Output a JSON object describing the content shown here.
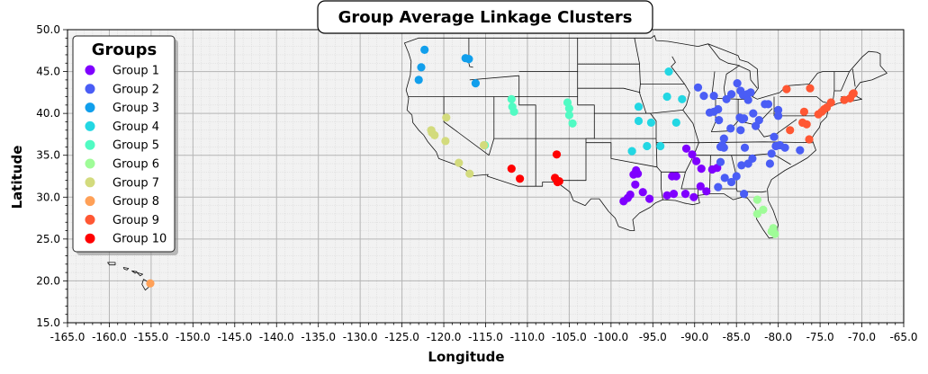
{
  "chart_data": {
    "type": "scatter",
    "title": "Group Average Linkage Clusters",
    "xlabel": "Longitude",
    "ylabel": "Latitude",
    "xlim": [
      -165,
      -65
    ],
    "ylim": [
      15,
      50
    ],
    "x_ticks": [
      -165,
      -160,
      -155,
      -150,
      -145,
      -140,
      -135,
      -130,
      -125,
      -120,
      -115,
      -110,
      -105,
      -100,
      -95,
      -90,
      -85,
      -80,
      -75,
      -70,
      -65
    ],
    "x_tick_labels": [
      "-165.0",
      "-160.0",
      "-155.0",
      "-150.0",
      "-145.0",
      "-140.0",
      "-135.0",
      "-130.0",
      "-125.0",
      "-120.0",
      "-115.0",
      "-110.0",
      "-105.0",
      "-100.0",
      "-95.0",
      "-90.0",
      "-85.0",
      "-80.0",
      "-75.0",
      "-70.0",
      "-65.0"
    ],
    "y_ticks": [
      15,
      20,
      25,
      30,
      35,
      40,
      45,
      50
    ],
    "y_tick_labels": [
      "15.0",
      "20.0",
      "25.0",
      "30.0",
      "35.0",
      "40.0",
      "45.0",
      "50.0"
    ],
    "grid": true,
    "legend_title": "Groups",
    "legend_position": "top-left",
    "series": [
      {
        "name": "Group 1",
        "color": "#7f00ff",
        "points": [
          [
            -97.0,
            33.2
          ],
          [
            -96.8,
            32.8
          ],
          [
            -97.3,
            32.7
          ],
          [
            -97.1,
            31.5
          ],
          [
            -96.2,
            30.6
          ],
          [
            -97.7,
            30.3
          ],
          [
            -98.0,
            29.9
          ],
          [
            -98.5,
            29.5
          ],
          [
            -95.4,
            29.8
          ],
          [
            -92.7,
            32.5
          ],
          [
            -92.2,
            32.5
          ],
          [
            -93.3,
            30.2
          ],
          [
            -92.5,
            30.4
          ],
          [
            -91.1,
            30.4
          ],
          [
            -90.1,
            30.0
          ],
          [
            -89.3,
            31.3
          ],
          [
            -88.6,
            30.7
          ],
          [
            -91.0,
            35.8
          ],
          [
            -90.3,
            35.1
          ],
          [
            -89.8,
            34.3
          ],
          [
            -89.2,
            33.4
          ],
          [
            -87.9,
            33.3
          ],
          [
            -87.3,
            33.5
          ]
        ]
      },
      {
        "name": "Group 2",
        "color": "#4a5df5",
        "points": [
          [
            -89.6,
            43.1
          ],
          [
            -88.9,
            42.1
          ],
          [
            -87.7,
            42.1
          ],
          [
            -88.2,
            40.1
          ],
          [
            -87.7,
            40.2
          ],
          [
            -87.2,
            40.5
          ],
          [
            -87.1,
            39.2
          ],
          [
            -86.7,
            36.2
          ],
          [
            -86.5,
            35.9
          ],
          [
            -86.5,
            37.0
          ],
          [
            -85.7,
            38.2
          ],
          [
            -86.2,
            41.7
          ],
          [
            -85.6,
            42.3
          ],
          [
            -84.9,
            43.6
          ],
          [
            -84.5,
            42.7
          ],
          [
            -84.2,
            42.2
          ],
          [
            -83.7,
            42.3
          ],
          [
            -83.6,
            41.6
          ],
          [
            -83.0,
            40.0
          ],
          [
            -84.6,
            39.5
          ],
          [
            -84.3,
            39.3
          ],
          [
            -84.5,
            38.0
          ],
          [
            -84.0,
            35.9
          ],
          [
            -84.4,
            33.8
          ],
          [
            -83.6,
            34.0
          ],
          [
            -83.1,
            34.6
          ],
          [
            -82.7,
            38.5
          ],
          [
            -82.3,
            39.2
          ],
          [
            -81.6,
            41.1
          ],
          [
            -81.2,
            41.1
          ],
          [
            -80.5,
            37.2
          ],
          [
            -80.3,
            36.1
          ],
          [
            -79.8,
            36.2
          ],
          [
            -79.2,
            35.9
          ],
          [
            -80.8,
            35.2
          ],
          [
            -81.0,
            34.0
          ],
          [
            -77.4,
            35.6
          ],
          [
            -80.0,
            40.4
          ],
          [
            -80.0,
            39.7
          ],
          [
            -85.6,
            31.8
          ],
          [
            -85.0,
            32.5
          ],
          [
            -84.1,
            30.4
          ],
          [
            -86.4,
            32.3
          ],
          [
            -87.2,
            31.2
          ],
          [
            -86.9,
            34.2
          ],
          [
            -86.9,
            36.0
          ],
          [
            -84.1,
            39.4
          ],
          [
            -83.3,
            42.5
          ]
        ]
      },
      {
        "name": "Group 3",
        "color": "#119fec",
        "points": [
          [
            -122.3,
            47.6
          ],
          [
            -122.7,
            45.5
          ],
          [
            -123.0,
            44.0
          ],
          [
            -117.4,
            46.6
          ],
          [
            -116.2,
            43.6
          ],
          [
            -117.0,
            46.5
          ]
        ]
      },
      {
        "name": "Group 4",
        "color": "#23d7e3",
        "points": [
          [
            -93.1,
            45.0
          ],
          [
            -93.3,
            42.0
          ],
          [
            -91.5,
            41.7
          ],
          [
            -96.7,
            40.8
          ],
          [
            -96.7,
            39.1
          ],
          [
            -95.2,
            38.9
          ],
          [
            -92.2,
            38.9
          ],
          [
            -95.7,
            36.1
          ],
          [
            -97.5,
            35.5
          ],
          [
            -94.1,
            36.1
          ]
        ]
      },
      {
        "name": "Group 5",
        "color": "#51fbc3",
        "points": [
          [
            -111.9,
            41.7
          ],
          [
            -111.8,
            40.8
          ],
          [
            -111.6,
            40.2
          ],
          [
            -105.2,
            41.3
          ],
          [
            -105.0,
            40.6
          ],
          [
            -105.0,
            39.8
          ],
          [
            -104.6,
            38.8
          ],
          [
            -115.1,
            36.2
          ]
        ]
      },
      {
        "name": "Group 6",
        "color": "#9ffc98",
        "points": [
          [
            -82.5,
            29.7
          ],
          [
            -81.8,
            28.5
          ],
          [
            -82.5,
            28.0
          ],
          [
            -80.6,
            26.3
          ],
          [
            -80.6,
            25.8
          ],
          [
            -80.4,
            25.6
          ],
          [
            -80.8,
            25.9
          ]
        ]
      },
      {
        "name": "Group 7",
        "color": "#d3db7d",
        "points": [
          [
            -119.7,
            39.5
          ],
          [
            -119.8,
            36.7
          ],
          [
            -121.5,
            38.0
          ],
          [
            -121.4,
            37.7
          ],
          [
            -121.1,
            37.4
          ],
          [
            -118.2,
            34.1
          ],
          [
            -116.9,
            32.8
          ],
          [
            -115.2,
            36.2
          ]
        ]
      },
      {
        "name": "Group 8",
        "color": "#ffa057",
        "points": [
          [
            -155.1,
            19.7
          ]
        ]
      },
      {
        "name": "Group 9",
        "color": "#ff5733",
        "points": [
          [
            -79.0,
            42.9
          ],
          [
            -76.2,
            43.0
          ],
          [
            -76.9,
            40.2
          ],
          [
            -77.1,
            38.9
          ],
          [
            -76.6,
            38.7
          ],
          [
            -76.3,
            36.9
          ],
          [
            -78.6,
            38.0
          ],
          [
            -75.2,
            39.9
          ],
          [
            -74.8,
            40.2
          ],
          [
            -74.5,
            40.5
          ],
          [
            -74.2,
            40.7
          ],
          [
            -73.7,
            41.3
          ],
          [
            -72.1,
            41.6
          ],
          [
            -71.4,
            41.8
          ],
          [
            -71.1,
            42.3
          ],
          [
            -71.0,
            42.4
          ]
        ]
      },
      {
        "name": "Group 10",
        "color": "#ff0000",
        "points": [
          [
            -106.5,
            35.1
          ],
          [
            -111.9,
            33.4
          ],
          [
            -110.9,
            32.2
          ],
          [
            -106.4,
            31.8
          ],
          [
            -106.7,
            32.3
          ],
          [
            -106.2,
            31.9
          ]
        ]
      }
    ]
  }
}
